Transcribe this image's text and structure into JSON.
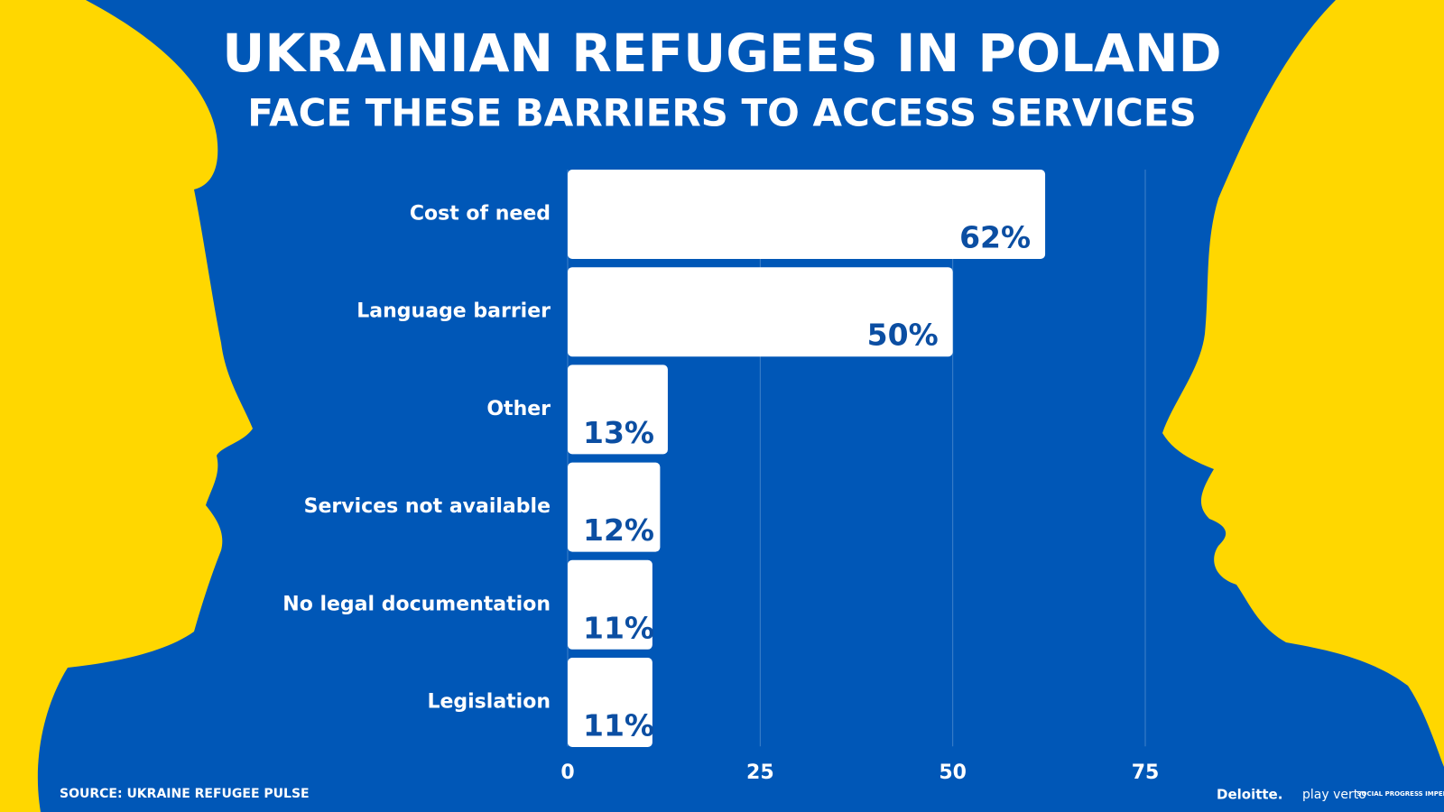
{
  "chart_data": {
    "type": "hbar",
    "title": "UKRAINIAN REFUGEES IN POLAND",
    "subtitle": "FACE THESE BARRIERS TO ACCESS SERVICES",
    "categories": [
      "Cost of need",
      "Language barrier",
      "Other",
      "Services not available",
      "No legal documentation",
      "Legislation"
    ],
    "values": [
      62,
      50,
      13,
      12,
      11,
      11
    ],
    "value_labels": [
      "62%",
      "50%",
      "13%",
      "12%",
      "11%",
      "11%"
    ],
    "color": "#ffffff",
    "xlim": [
      0,
      75
    ],
    "xticks": [
      0,
      25,
      50,
      75
    ],
    "grid": true,
    "source": "SOURCE: UKRAINE REFUGEE PULSE"
  },
  "logos": [
    "Deloitte.",
    "play verto",
    "SOCIAL PROGRESS IMPERATIVE"
  ]
}
